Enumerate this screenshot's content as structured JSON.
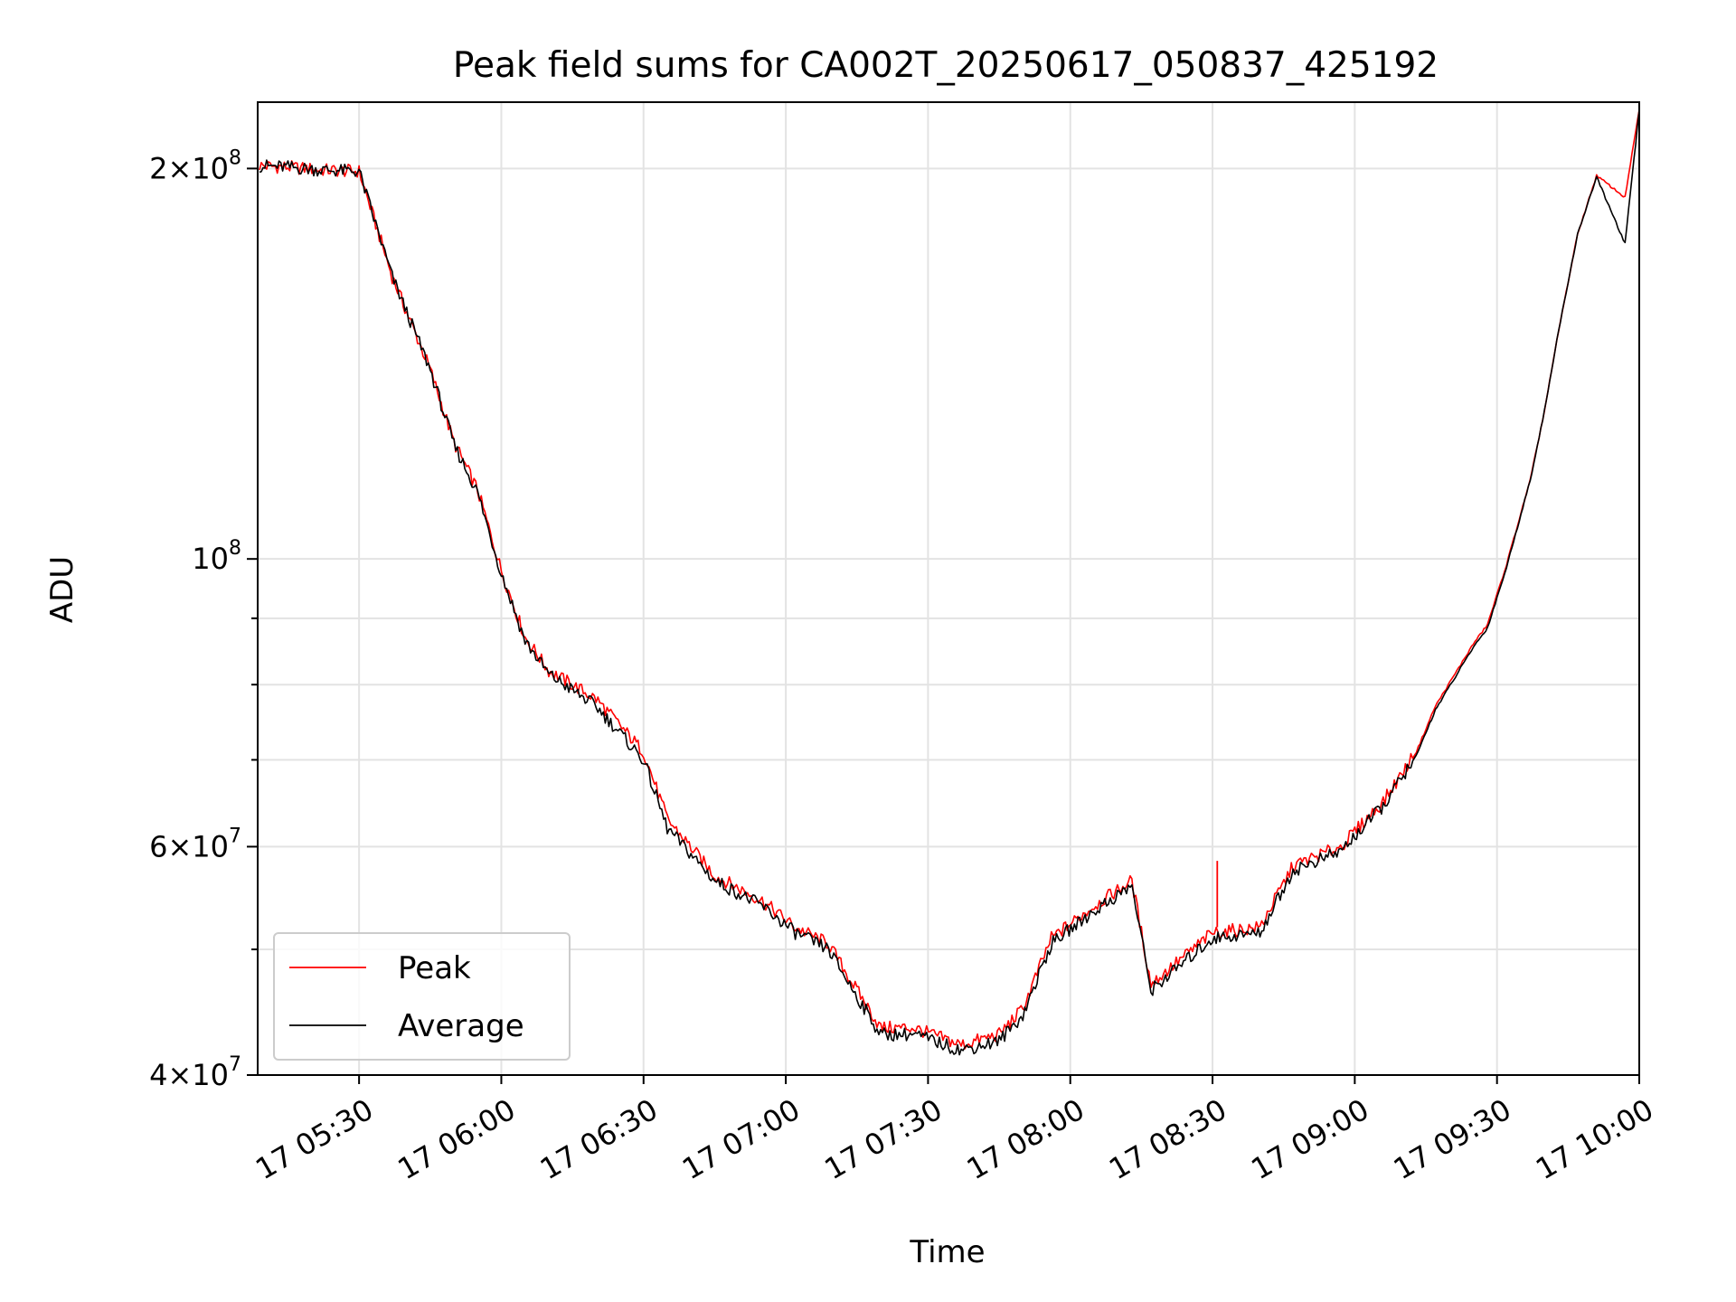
{
  "chart_data": {
    "type": "line",
    "title": "Peak field sums for CA002T_20250617_050837_425192",
    "xlabel": "Time",
    "ylabel": "ADU",
    "yscale": "log",
    "xlim": [
      "2025-06-17 05:08:37",
      "2025-06-17 10:00:00"
    ],
    "ylim": [
      40000000,
      225000000
    ],
    "grid": true,
    "legend_position": "lower-left",
    "x_ticks": [
      "17 05:30",
      "17 06:00",
      "17 06:30",
      "17 07:00",
      "17 07:30",
      "17 08:00",
      "17 08:30",
      "17 09:00",
      "17 09:30",
      "17 10:00"
    ],
    "y_tick_labels": [
      {
        "value": 40000000,
        "mantissa": "4",
        "exponent": "7"
      },
      {
        "value": 60000000,
        "mantissa": "6",
        "exponent": "7"
      },
      {
        "value": 100000000,
        "mantissa": "",
        "exponent": "8"
      },
      {
        "value": 200000000,
        "mantissa": "2",
        "exponent": "8"
      }
    ],
    "x": [
      "05:09",
      "05:15",
      "05:22",
      "05:30",
      "05:37",
      "05:45",
      "05:50",
      "05:55",
      "06:00",
      "06:05",
      "06:10",
      "06:20",
      "06:30",
      "06:35",
      "06:45",
      "06:55",
      "07:02",
      "07:09",
      "07:15",
      "07:20",
      "07:27",
      "07:37",
      "07:45",
      "07:50",
      "07:56",
      "08:05",
      "08:13",
      "08:17",
      "08:30",
      "08:40",
      "08:47",
      "08:57",
      "09:06",
      "09:13",
      "09:17",
      "09:25",
      "09:28",
      "09:32",
      "09:37",
      "09:40",
      "09:43",
      "09:47",
      "09:51",
      "09:57",
      "10:00"
    ],
    "series": [
      {
        "name": "Peak",
        "color": "#ff0000",
        "values": [
          201000000,
          200500000,
          199500000,
          199000000,
          165000000,
          140000000,
          123000000,
          113000000,
          98000000,
          87000000,
          82000000,
          78000000,
          71000000,
          63000000,
          57000000,
          54500000,
          52000000,
          50500000,
          46500000,
          43500000,
          43500000,
          42200000,
          43000000,
          45000000,
          51000000,
          54000000,
          56500000,
          47000000,
          51500000,
          52000000,
          58000000,
          60000000,
          65000000,
          71000000,
          77000000,
          86000000,
          89000000,
          99000000,
          115000000,
          130000000,
          150000000,
          178000000,
          197500000,
          190000000,
          222000000
        ]
      },
      {
        "name": "Average",
        "color": "#000000",
        "values": [
          201000000,
          200500000,
          199500000,
          199000000,
          165000000,
          140000000,
          122500000,
          112500000,
          97500000,
          86500000,
          81500000,
          77000000,
          70000000,
          62000000,
          56500000,
          54000000,
          51500000,
          50000000,
          46000000,
          43000000,
          43000000,
          41800000,
          42500000,
          44500000,
          50500000,
          53500000,
          56000000,
          46500000,
          51000000,
          51500000,
          57500000,
          59500000,
          64500000,
          70500000,
          76500000,
          85500000,
          88500000,
          98500000,
          115000000,
          130000000,
          150000000,
          178000000,
          197000000,
          175000000,
          222000000
        ]
      }
    ],
    "annotations": [
      {
        "type": "spike",
        "series": "Peak",
        "x": "08:31",
        "y": 58500000
      }
    ]
  }
}
